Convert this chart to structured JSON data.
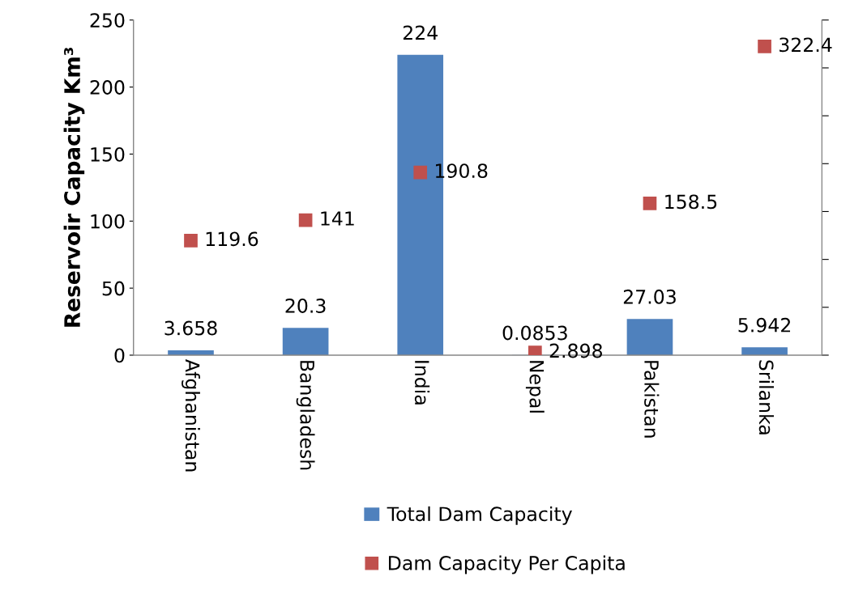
{
  "chart_data": {
    "type": "bar",
    "ylabel": "Reservoir Capacity Km³",
    "categories": [
      "Afghanistan",
      "Bangladesh",
      "India",
      "Nepal",
      "Pakistan",
      "Srilanka"
    ],
    "series": [
      {
        "name": "Total Dam Capacity",
        "color": "#4f81bd",
        "values": [
          3.658,
          20.3,
          224,
          0.0853,
          27.03,
          5.942
        ]
      },
      {
        "name": "Dam Capacity Per Capita",
        "type": "scatter",
        "axis": "y2",
        "marker": "square",
        "color": "#c0504d",
        "values": [
          119.6,
          141,
          190.8,
          2.898,
          158.5,
          322.4
        ]
      }
    ],
    "ylim": [
      0,
      250
    ],
    "yticks": [
      0,
      50,
      100,
      150,
      200,
      250
    ],
    "y2lim": [
      0,
      350
    ],
    "y2ticks": [
      {
        "value": 0,
        "label": null
      },
      {
        "value": 50,
        "label": null
      },
      {
        "value": 100,
        "label": null
      },
      {
        "value": 150,
        "label": null
      },
      {
        "value": 200,
        "label": null
      },
      {
        "value": 250,
        "label": null
      },
      {
        "value": 300,
        "label": null
      },
      {
        "value": 350,
        "label": null
      }
    ],
    "data_labels": true,
    "legend": "bottom",
    "grid": false
  }
}
